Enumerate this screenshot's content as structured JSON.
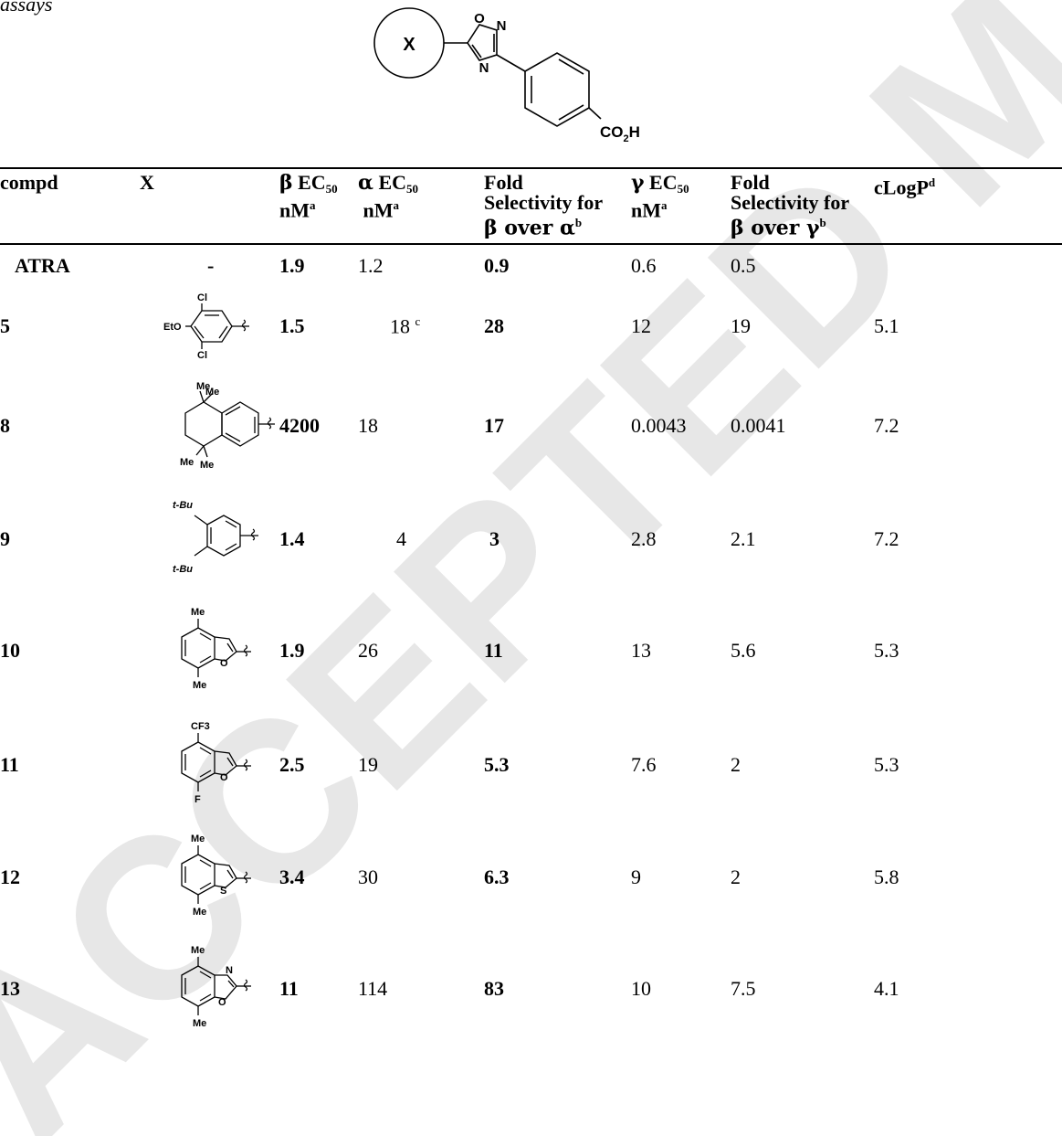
{
  "caption_fragment": "assays",
  "scaffold": {
    "substituent_label": "X",
    "ring_o": "O",
    "ring_n_top": "N",
    "ring_n_bottom": "N",
    "acid_label": "CO",
    "acid_sub": "2",
    "acid_h": "H"
  },
  "headers": {
    "compd": "compd",
    "x": "X",
    "beta_ec50": {
      "greek": "β",
      "label": "EC",
      "sub": "50",
      "unit": "nM",
      "note": "a"
    },
    "alpha_ec50": {
      "greek": "α",
      "label": "EC",
      "sub": "50",
      "unit": "nM",
      "note": "a"
    },
    "fold_alpha": {
      "line1": "Fold",
      "line2": "Selectivity for",
      "line3a": "β over α",
      "note": "b"
    },
    "gamma_ec50": {
      "greek": "γ",
      "label": "EC",
      "sub": "50",
      "unit": "nM",
      "note": "a"
    },
    "fold_gamma": {
      "line1": "Fold",
      "line2": "Selectivity for",
      "line3a": "β over γ",
      "note": "b"
    },
    "clogp": {
      "label": "cLogP",
      "note": "d"
    }
  },
  "rows": [
    {
      "compd": "ATRA",
      "x_text": "-",
      "beta": "1.9",
      "alpha": "1.2",
      "alpha_note": "",
      "fold_alpha": "0.9",
      "gamma": "0.6",
      "fold_gamma": "0.5",
      "clogp": ""
    },
    {
      "compd": "5",
      "structure": "3,5-dichloro-4-ethoxyphenyl",
      "beta": "1.5",
      "alpha": "18",
      "alpha_note": "c",
      "fold_alpha": "28",
      "gamma": "12",
      "fold_gamma": "19",
      "clogp": "5.1"
    },
    {
      "compd": "8",
      "structure": "tetramethyl-tetrahydronaphthyl",
      "beta": "4200",
      "alpha": "18",
      "alpha_note": "",
      "fold_alpha": "17",
      "gamma": "0.0043",
      "fold_gamma": "0.0041",
      "clogp": "7.2"
    },
    {
      "compd": "9",
      "structure": "3,5-di-tert-butylphenyl",
      "beta": "1.4",
      "alpha": "4",
      "alpha_note": "",
      "fold_alpha": "3",
      "gamma": "2.8",
      "fold_gamma": "2.1",
      "clogp": "7.2"
    },
    {
      "compd": "10",
      "structure": "4,7-dimethylbenzofuran-2-yl",
      "beta": "1.9",
      "alpha": "26",
      "alpha_note": "",
      "fold_alpha": "11",
      "gamma": "13",
      "fold_gamma": "5.6",
      "clogp": "5.3"
    },
    {
      "compd": "11",
      "structure": "4-trifluoromethyl-7-fluorobenzofuran-2-yl",
      "beta": "2.5",
      "alpha": "19",
      "alpha_note": "",
      "fold_alpha": "5.3",
      "gamma": "7.6",
      "fold_gamma": "2",
      "clogp": "5.3"
    },
    {
      "compd": "12",
      "structure": "4,7-dimethylbenzothiophen-2-yl",
      "beta": "3.4",
      "alpha": "30",
      "alpha_note": "",
      "fold_alpha": "6.3",
      "gamma": "9",
      "fold_gamma": "2",
      "clogp": "5.8"
    },
    {
      "compd": "13",
      "structure": "4,7-dimethylbenzoxazol-2-yl",
      "beta": "11",
      "alpha": "114",
      "alpha_note": "",
      "fold_alpha": "83",
      "gamma": "10",
      "fold_gamma": "7.5",
      "clogp": "4.1"
    }
  ],
  "structure_labels": {
    "r5_cl_top": "Cl",
    "r5_eto": "EtO",
    "r5_cl_bot": "Cl",
    "r8_me1": "Me",
    "r8_me2": "Me",
    "r8_me3": "Me",
    "r8_me4": "Me",
    "r9_tbu_top": "t-Bu",
    "r9_tbu_bot": "t-Bu",
    "r10_me_top": "Me",
    "r10_o": "O",
    "r10_me_bot": "Me",
    "r11_cf3": "CF3",
    "r11_o": "O",
    "r11_f": "F",
    "r12_me_top": "Me",
    "r12_s": "S",
    "r12_me_bot": "Me",
    "r13_me_top": "Me",
    "r13_n": "N",
    "r13_o": "O",
    "r13_me_bot": "Me"
  },
  "watermark": "ACCEPTED MANUSCRIPT"
}
